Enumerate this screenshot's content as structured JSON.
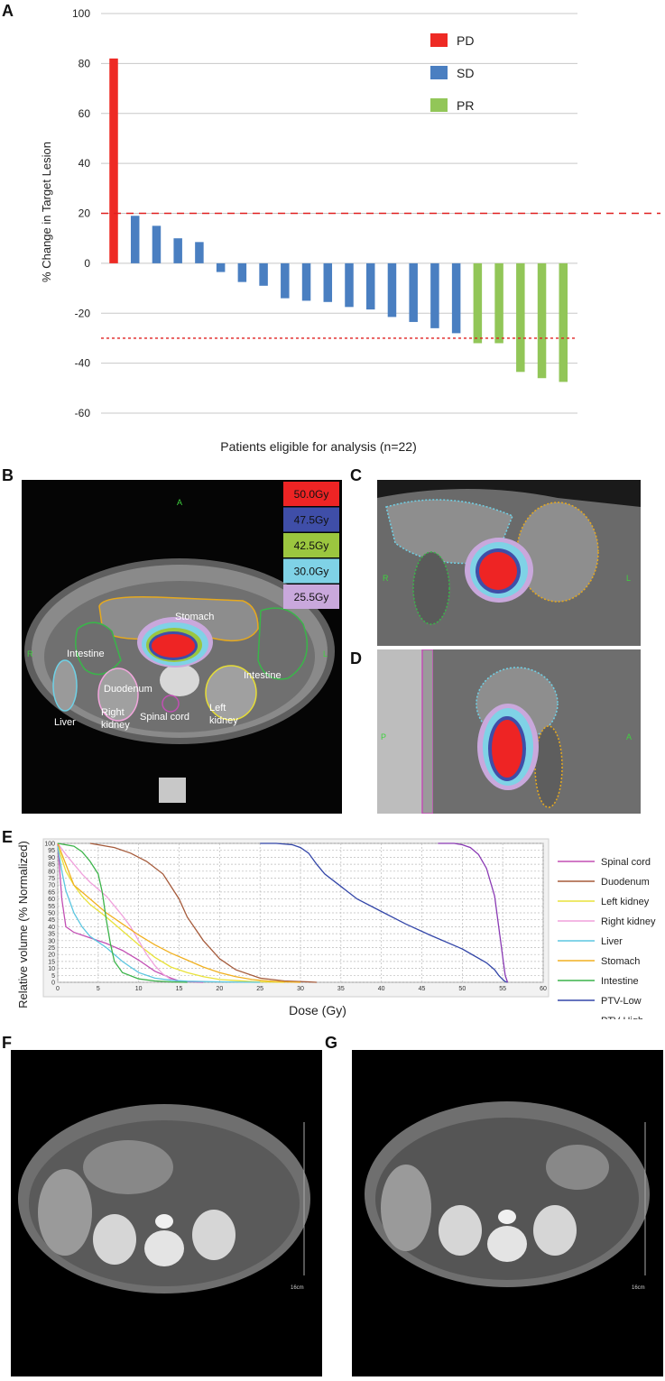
{
  "panels": {
    "a": "A",
    "b": "B",
    "c": "C",
    "d": "D",
    "e": "E",
    "f": "F",
    "g": "G"
  },
  "colors": {
    "pd": "#ee2a24",
    "sd": "#4a7fc1",
    "pr": "#92c658",
    "threshold_pd": "#e02020",
    "threshold_pr": "#e02020"
  },
  "panel_b": {
    "orientation_top": "A",
    "orientation_left": "R",
    "orientation_right": "L",
    "legend": [
      {
        "label": "50.0Gy",
        "color": "#ee2424"
      },
      {
        "label": "47.5Gy",
        "color": "#3f4ea8"
      },
      {
        "label": "42.5Gy",
        "color": "#9bc63f"
      },
      {
        "label": "30.0Gy",
        "color": "#7fd2e6"
      },
      {
        "label": "25.5Gy",
        "color": "#c9a8dc"
      }
    ],
    "structures": {
      "stomach": "Stomach",
      "intestine_left": "Intestine",
      "intestine_right": "Intestine",
      "duodenum": "Duodenum",
      "liver": "Liver",
      "right_kidney_1": "Right",
      "right_kidney_2": "kidney",
      "spinal_cord": "Spinal cord",
      "left_kidney_1": "Left",
      "left_kidney_2": "kidney"
    }
  },
  "panel_c": {
    "left": "R",
    "right": "L"
  },
  "panel_d": {
    "left": "P",
    "right": "A"
  },
  "panel_f": {
    "scale": "16cm"
  },
  "panel_g": {
    "scale": "16cm"
  },
  "chart_data": [
    {
      "type": "bar",
      "ylabel": "% Change in Target Lesion",
      "xlabel": "Patients eligible for analysis (n=22)",
      "ylim": [
        -60,
        100
      ],
      "yticks": [
        100,
        80,
        60,
        40,
        20,
        0,
        -20,
        -40,
        -60
      ],
      "grid": true,
      "legend_position": "top-right",
      "legend": [
        {
          "label": "PD",
          "group": "pd"
        },
        {
          "label": "SD",
          "group": "sd"
        },
        {
          "label": "PR",
          "group": "pr"
        }
      ],
      "thresholds": [
        20,
        -30
      ],
      "values": [
        82,
        19,
        15,
        10,
        8.5,
        -3.5,
        -7.5,
        -9,
        -14,
        -15,
        -15.5,
        -17.5,
        -18.5,
        -21.5,
        -23.5,
        -26,
        -28,
        -32,
        -32,
        -43.5,
        -46,
        -47.5
      ],
      "groups": [
        "pd",
        "sd",
        "sd",
        "sd",
        "sd",
        "sd",
        "sd",
        "sd",
        "sd",
        "sd",
        "sd",
        "sd",
        "sd",
        "sd",
        "sd",
        "sd",
        "sd",
        "pr",
        "pr",
        "pr",
        "pr",
        "pr"
      ]
    },
    {
      "type": "line",
      "ylabel": "Relative volume (% Normalized)",
      "xlabel": "Dose (Gy)",
      "xlim": [
        0,
        60
      ],
      "ylim": [
        0,
        100
      ],
      "xticks": [
        0,
        5,
        10,
        15,
        20,
        25,
        30,
        35,
        40,
        45,
        50,
        55,
        60
      ],
      "yticks": [
        0,
        5,
        10,
        15,
        20,
        25,
        30,
        35,
        40,
        45,
        50,
        55,
        60,
        65,
        70,
        75,
        80,
        85,
        90,
        95,
        100
      ],
      "grid": true,
      "legend_position": "right",
      "series": [
        {
          "name": "Spinal cord",
          "color": "#c24fb4",
          "x": [
            0,
            0.5,
            1,
            2,
            4,
            6,
            8,
            10,
            12,
            14,
            15,
            16,
            18
          ],
          "y": [
            100,
            60,
            40,
            36,
            32,
            28,
            23,
            16,
            8,
            3,
            1,
            0.5,
            0
          ]
        },
        {
          "name": "Duodenum",
          "color": "#a55a3a",
          "x": [
            4,
            5,
            7,
            9,
            11,
            13,
            15,
            16,
            18,
            20,
            22,
            25,
            28,
            31,
            32
          ],
          "y": [
            100,
            99,
            97,
            93,
            87,
            78,
            60,
            47,
            30,
            17,
            9,
            3,
            1,
            0.3,
            0
          ]
        },
        {
          "name": "Left kidney",
          "color": "#e8e23a",
          "x": [
            0,
            1,
            2,
            3,
            4,
            6,
            8,
            10,
            12,
            14,
            16,
            18,
            20,
            24,
            28
          ],
          "y": [
            98,
            80,
            70,
            62,
            56,
            47,
            37,
            27,
            18,
            11,
            7,
            4,
            2,
            0.5,
            0
          ]
        },
        {
          "name": "Right kidney",
          "color": "#f0a0dc",
          "x": [
            0,
            1,
            2,
            3,
            4,
            5,
            6,
            7,
            8,
            9,
            10,
            11,
            12,
            13,
            14,
            15,
            16
          ],
          "y": [
            100,
            92,
            85,
            78,
            72,
            67,
            62,
            55,
            48,
            40,
            30,
            20,
            12,
            6,
            2,
            0.5,
            0
          ]
        },
        {
          "name": "Liver",
          "color": "#5bc6e0",
          "x": [
            0,
            0.5,
            1,
            2,
            3,
            4,
            5,
            6,
            7,
            8,
            9,
            10,
            12,
            14,
            16,
            20,
            25
          ],
          "y": [
            98,
            80,
            66,
            50,
            40,
            33,
            29,
            25,
            20,
            15,
            11,
            7,
            3,
            1.5,
            0.8,
            0.3,
            0
          ]
        },
        {
          "name": "Stomach",
          "color": "#f0b020",
          "x": [
            0,
            2,
            4,
            6,
            8,
            10,
            12,
            14,
            16,
            18,
            20,
            22,
            24,
            26,
            28,
            30
          ],
          "y": [
            100,
            70,
            60,
            50,
            42,
            34,
            27,
            21,
            16,
            11,
            7,
            4,
            2,
            1,
            0.3,
            0
          ]
        },
        {
          "name": "Intestine",
          "color": "#3cb44a",
          "x": [
            0,
            2,
            3,
            4,
            5,
            5.5,
            6,
            6.5,
            7,
            8,
            10,
            12,
            14,
            16
          ],
          "y": [
            100,
            98,
            94,
            87,
            78,
            65,
            45,
            28,
            15,
            7,
            2.5,
            1,
            0.3,
            0
          ]
        },
        {
          "name": "PTV-Low",
          "color": "#3346a8",
          "x": [
            25,
            27,
            29,
            30,
            31,
            32,
            33,
            35,
            37,
            40,
            43,
            46,
            50,
            53,
            54,
            54.5,
            55,
            55.3,
            55.6
          ],
          "y": [
            100,
            100,
            99,
            97,
            93,
            85,
            78,
            69,
            60,
            51,
            42,
            34,
            24,
            14,
            9,
            5,
            2,
            0.5,
            0
          ]
        },
        {
          "name": "PTV-High",
          "color": "#8a3ab4",
          "x": [
            47,
            49,
            50,
            51,
            52,
            53,
            54,
            54.5,
            55,
            55.3,
            55.6
          ],
          "y": [
            100,
            100,
            99,
            97,
            92,
            82,
            62,
            40,
            18,
            5,
            0
          ]
        }
      ]
    }
  ]
}
